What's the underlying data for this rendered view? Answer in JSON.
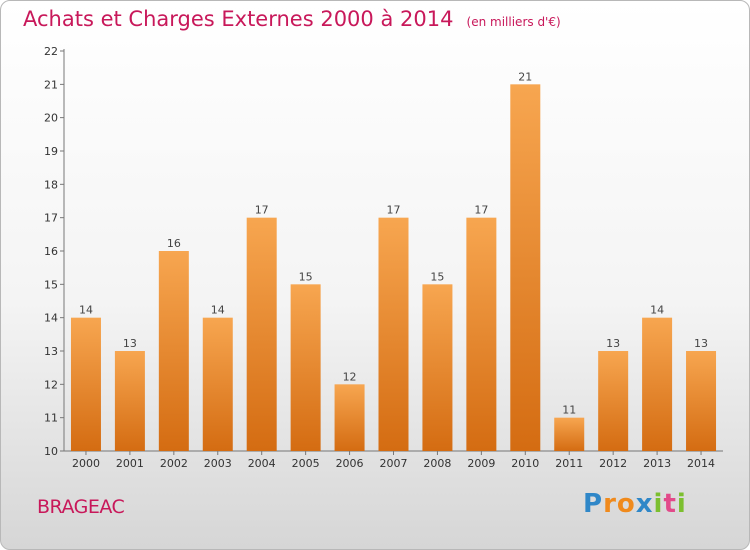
{
  "header": {
    "title": "Achats et Charges Externes 2000 à 2014",
    "unit": "(en milliers d'€)"
  },
  "footer": {
    "place": "BRAGEAC",
    "logo_letters": [
      "P",
      "r",
      "o",
      "x",
      "i",
      "t",
      "i"
    ],
    "logo_colors": [
      "#2f87c8",
      "#f08a1c",
      "#f08a1c",
      "#2f87c8",
      "#7cbf2f",
      "#e24a8a",
      "#7cbf2f"
    ]
  },
  "colors": {
    "title": "#c8185a",
    "bar_top": "#f7a650",
    "bar_bottom": "#d46c12"
  },
  "chart_data": {
    "type": "bar",
    "categories": [
      "2000",
      "2001",
      "2002",
      "2003",
      "2004",
      "2005",
      "2006",
      "2007",
      "2008",
      "2009",
      "2010",
      "2011",
      "2012",
      "2013",
      "2014"
    ],
    "values": [
      14,
      13,
      16,
      14,
      17,
      15,
      12,
      17,
      15,
      17,
      21,
      11,
      13,
      14,
      13
    ],
    "ylim": [
      10,
      22
    ],
    "yticks": [
      10,
      11,
      12,
      13,
      14,
      15,
      16,
      17,
      18,
      19,
      20,
      21,
      22
    ],
    "grid": false,
    "data_labels": true
  }
}
